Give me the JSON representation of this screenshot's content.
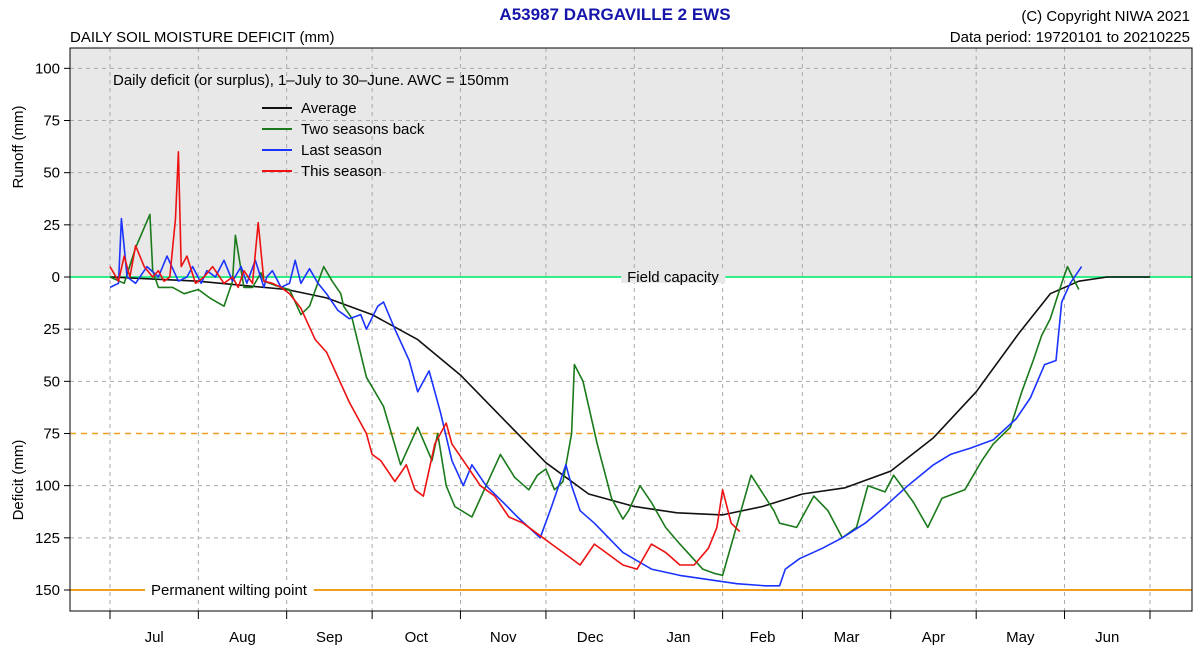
{
  "header": {
    "station": "A53987  DARGAVILLE 2 EWS",
    "copyright": "(C) Copyright NIWA  2021",
    "data_period": "Data period:  19720101  to  20210225",
    "chart_heading": "DAILY SOIL MOISTURE DEFICIT (mm)"
  },
  "chart_data": {
    "type": "line",
    "title": "A53987  DARGAVILLE 2 EWS",
    "subtitle": "Daily deficit (or surplus), 1–July to 30–June.  AWC = 150mm",
    "ylabel_upper": "Runoff (mm)",
    "ylabel_lower": "Deficit (mm)",
    "y_direction": "surplus positive above 0, deficit plotted downward below 0",
    "ylim": [
      -150,
      100
    ],
    "y_ticks": [
      {
        "value": 100,
        "label": "100"
      },
      {
        "value": 75,
        "label": "75"
      },
      {
        "value": 50,
        "label": "50"
      },
      {
        "value": 25,
        "label": "25"
      },
      {
        "value": 0,
        "label": "0"
      },
      {
        "value": -25,
        "label": "25"
      },
      {
        "value": -50,
        "label": "50"
      },
      {
        "value": -75,
        "label": "75"
      },
      {
        "value": -100,
        "label": "100"
      },
      {
        "value": -125,
        "label": "125"
      },
      {
        "value": -150,
        "label": "150"
      }
    ],
    "x_unit": "day of season (0 = 1 July)",
    "xlim": [
      -10,
      375
    ],
    "month_labels": [
      "Jul",
      "Aug",
      "Sep",
      "Oct",
      "Nov",
      "Dec",
      "Jan",
      "Feb",
      "Mar",
      "Apr",
      "May",
      "Jun"
    ],
    "month_boundaries": [
      0,
      31,
      62,
      92,
      123,
      153,
      184,
      215,
      243,
      274,
      304,
      335,
      365
    ],
    "grid": true,
    "legend_position": "top-left",
    "reference_lines": [
      {
        "name": "Field capacity",
        "value": 0,
        "color": "#33ee88",
        "style": "solid"
      },
      {
        "name": "",
        "value": -75,
        "color": "#f0a020",
        "style": "dashed"
      },
      {
        "name": "Permanent wilting point",
        "value": -150,
        "color": "#f0a020",
        "style": "solid"
      }
    ],
    "series": [
      {
        "name": "Average",
        "color": "#111111",
        "x": [
          0,
          31,
          62,
          76,
          92,
          108,
          123,
          138,
          153,
          168,
          184,
          199,
          215,
          229,
          243,
          258,
          274,
          289,
          304,
          319,
          330,
          340,
          350,
          365
        ],
        "y": [
          0,
          -2,
          -6,
          -10,
          -18,
          -30,
          -47,
          -68,
          -89,
          -104,
          -110,
          -113,
          -114,
          -110,
          -104,
          -101,
          -93,
          -77,
          -55,
          -27,
          -8,
          -2,
          0,
          0
        ]
      },
      {
        "name": "Two seasons back",
        "color": "#1a7a1a",
        "x": [
          0,
          5,
          9,
          14,
          15,
          17,
          22,
          26,
          31,
          35,
          40,
          43,
          44,
          47,
          50,
          53,
          54,
          56,
          60,
          63,
          67,
          70,
          75,
          78,
          81,
          82,
          85,
          90,
          96,
          102,
          108,
          113,
          115,
          118,
          121,
          127,
          132,
          137,
          142,
          147,
          150,
          153,
          156,
          159,
          162,
          163,
          166,
          171,
          176,
          180,
          182,
          186,
          190,
          195,
          200,
          204,
          208,
          212,
          215,
          225,
          233,
          235,
          241,
          247,
          252,
          257,
          262,
          266,
          272,
          275,
          282,
          287,
          292,
          300,
          306,
          310,
          316,
          320,
          324,
          327,
          330,
          334,
          336,
          340
        ],
        "y": [
          0,
          -3,
          14,
          30,
          3,
          -5,
          -5,
          -8,
          -6,
          -10,
          -14,
          -2,
          20,
          -5,
          -5,
          2,
          -2,
          -3,
          -5,
          -6,
          -18,
          -14,
          5,
          -2,
          -8,
          -14,
          -20,
          -48,
          -62,
          -90,
          -72,
          -88,
          -75,
          -100,
          -110,
          -115,
          -100,
          -85,
          -96,
          -102,
          -95,
          -92,
          -102,
          -98,
          -75,
          -42,
          -50,
          -80,
          -106,
          -116,
          -112,
          -100,
          -108,
          -120,
          -128,
          -134,
          -140,
          -142,
          -143,
          -95,
          -112,
          -118,
          -120,
          -105,
          -112,
          -125,
          -120,
          -100,
          -103,
          -95,
          -108,
          -120,
          -106,
          -102,
          -88,
          -80,
          -72,
          -55,
          -40,
          -28,
          -20,
          -3,
          5,
          -6
        ]
      },
      {
        "name": "Last season",
        "color": "#1a33ff",
        "x": [
          0,
          3,
          4,
          6,
          9,
          13,
          17,
          20,
          24,
          27,
          29,
          32,
          34,
          37,
          40,
          43,
          46,
          48,
          51,
          54,
          55,
          57,
          60,
          63,
          65,
          67,
          70,
          73,
          76,
          80,
          84,
          88,
          90,
          94,
          96,
          100,
          105,
          108,
          112,
          116,
          120,
          124,
          127,
          132,
          138,
          143,
          147,
          151,
          155,
          160,
          162,
          165,
          170,
          175,
          180,
          190,
          200,
          210,
          220,
          230,
          235,
          237,
          242,
          250,
          257,
          265,
          272,
          280,
          289,
          295,
          302,
          310,
          318,
          323,
          328,
          332,
          334,
          337,
          340,
          341
        ],
        "y": [
          -5,
          -3,
          28,
          0,
          -3,
          5,
          0,
          10,
          -2,
          0,
          5,
          -3,
          3,
          0,
          8,
          -2,
          5,
          -3,
          8,
          -5,
          0,
          3,
          -5,
          -3,
          8,
          -3,
          4,
          -3,
          -8,
          -16,
          -20,
          -18,
          -25,
          -14,
          -12,
          -25,
          -40,
          -55,
          -45,
          -65,
          -88,
          -100,
          -90,
          -100,
          -108,
          -115,
          -120,
          -125,
          -110,
          -90,
          -100,
          -112,
          -118,
          -125,
          -132,
          -140,
          -143,
          -145,
          -147,
          -148,
          -148,
          -140,
          -135,
          -130,
          -125,
          -118,
          -110,
          -100,
          -90,
          -85,
          -82,
          -78,
          -68,
          -58,
          -42,
          -40,
          -12,
          -3,
          3,
          5
        ]
      },
      {
        "name": "This season",
        "color": "#ee1111",
        "x": [
          0,
          3,
          5,
          7,
          9,
          12,
          15,
          17,
          19,
          21,
          23,
          24,
          25,
          27,
          30,
          33,
          36,
          40,
          43,
          45,
          47,
          50,
          52,
          54,
          57,
          60,
          63,
          67,
          72,
          76,
          80,
          84,
          88,
          90,
          92,
          95,
          100,
          104,
          107,
          110,
          114,
          118,
          120,
          125,
          130,
          135,
          140,
          145,
          150,
          155,
          160,
          165,
          170,
          175,
          180,
          185,
          190,
          195,
          200,
          205,
          210,
          213,
          215,
          218,
          221
        ],
        "y": [
          5,
          -2,
          10,
          0,
          15,
          5,
          0,
          3,
          -2,
          0,
          28,
          60,
          5,
          10,
          -3,
          0,
          5,
          -3,
          0,
          -5,
          3,
          -3,
          26,
          -2,
          -3,
          -5,
          -8,
          -15,
          -30,
          -36,
          -48,
          -60,
          -70,
          -75,
          -85,
          -88,
          -98,
          -90,
          -102,
          -105,
          -80,
          -70,
          -80,
          -90,
          -100,
          -105,
          -115,
          -118,
          -123,
          -128,
          -133,
          -138,
          -128,
          -133,
          -138,
          -140,
          -128,
          -132,
          -138,
          -138,
          -130,
          -120,
          -102,
          -118,
          -122
        ]
      }
    ]
  }
}
